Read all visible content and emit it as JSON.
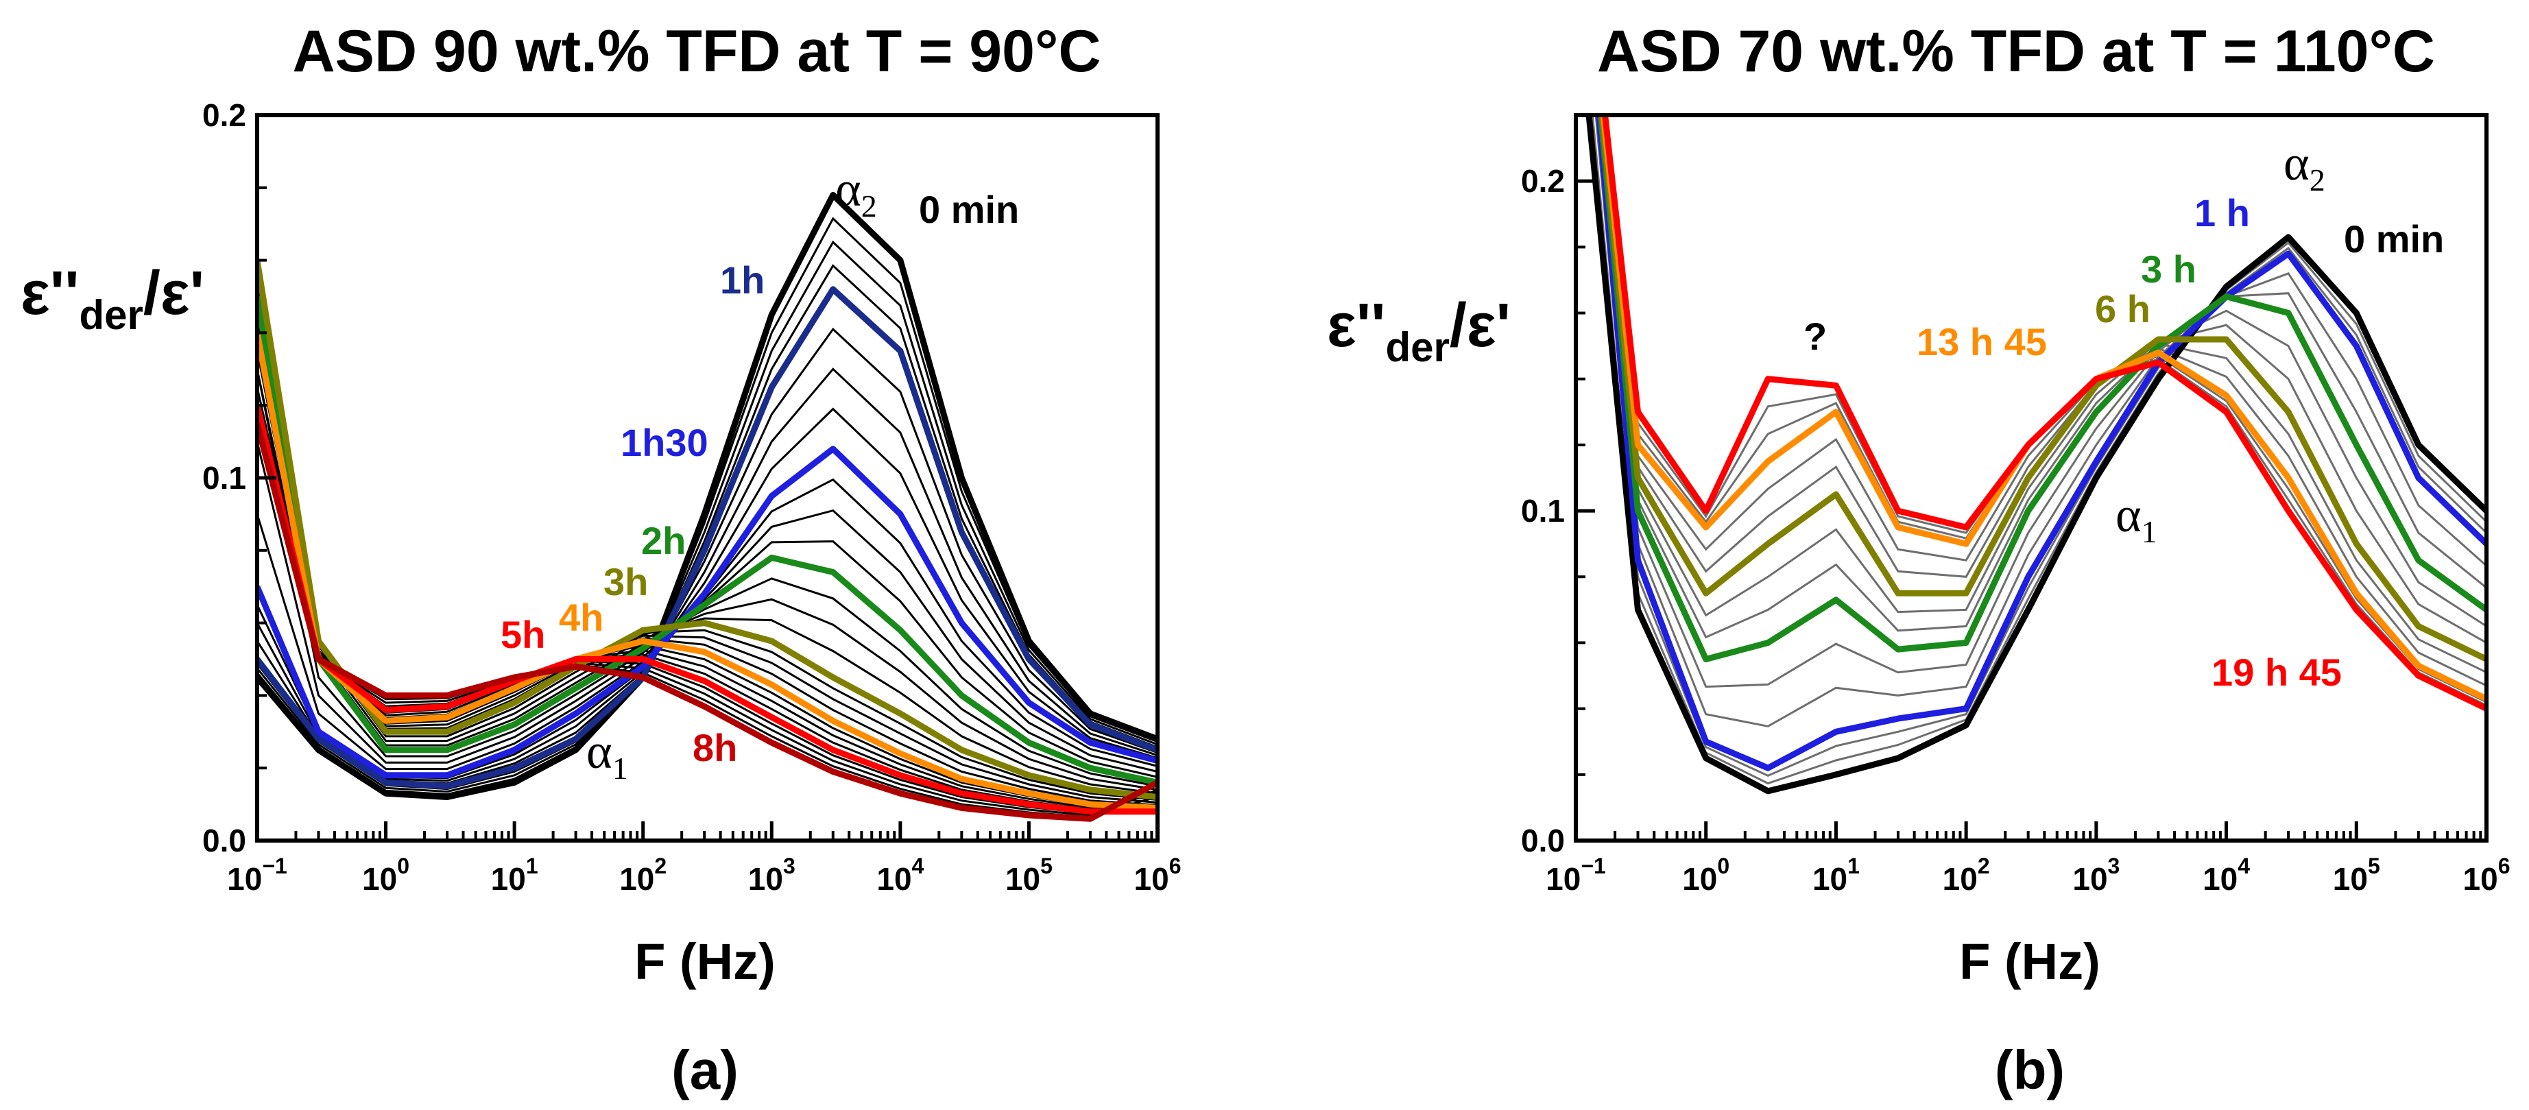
{
  "chart_data": [
    {
      "type": "line",
      "panel_label": "(a)",
      "title": "ASD 90 wt.% TFD at T = 90°C",
      "xlabel": "F (Hz)",
      "ylabel": "ε''der/ε'",
      "ylabel_main": "ε''",
      "ylabel_sub": "der",
      "ylabel_tail": "/ε'",
      "x_scale": "log",
      "xlim": [
        0.1,
        1000000
      ],
      "ylim": [
        0,
        0.2
      ],
      "x_tick_bases": [
        "10",
        "10",
        "10",
        "10",
        "10",
        "10",
        "10",
        "10"
      ],
      "x_tick_exps": [
        "−1",
        "0",
        "1",
        "2",
        "3",
        "4",
        "5",
        "6"
      ],
      "x_tick_values": [
        0.1,
        1,
        10,
        100,
        1000,
        10000,
        100000,
        1000000
      ],
      "y_ticks": [
        0,
        0.1,
        0.2
      ],
      "y_tick_labels": [
        "0.0",
        "0.1",
        "0.2"
      ],
      "colors": {
        "black": "#000000",
        "navy": "#1a2c8c",
        "blue": "#1f1fe0",
        "green": "#1a8a1a",
        "olive": "#808000",
        "orange": "#ff8c00",
        "red": "#ff0000",
        "darkred": "#b00000"
      },
      "series": [
        {
          "label": "0 min",
          "color": "#000000",
          "x": [
            0.1,
            0.3,
            1,
            3,
            10,
            30,
            100,
            300,
            1000,
            3000,
            10000,
            30000,
            100000,
            300000,
            1000000
          ],
          "y": [
            0.045,
            0.025,
            0.013,
            0.012,
            0.016,
            0.025,
            0.045,
            0.09,
            0.145,
            0.178,
            0.16,
            0.1,
            0.055,
            0.035,
            0.028
          ]
        },
        {
          "label": "1h",
          "color": "#1a2c8c",
          "x": [
            0.1,
            0.3,
            1,
            3,
            10,
            30,
            100,
            300,
            1000,
            3000,
            10000,
            30000,
            100000,
            300000,
            1000000
          ],
          "y": [
            0.05,
            0.028,
            0.016,
            0.015,
            0.02,
            0.028,
            0.045,
            0.08,
            0.125,
            0.152,
            0.135,
            0.085,
            0.05,
            0.032,
            0.025
          ]
        },
        {
          "label": "1h30",
          "color": "#1f1fe0",
          "x": [
            0.1,
            0.3,
            1,
            3,
            10,
            30,
            100,
            300,
            1000,
            3000,
            10000,
            30000,
            100000,
            300000,
            1000000
          ],
          "y": [
            0.07,
            0.03,
            0.018,
            0.018,
            0.025,
            0.035,
            0.048,
            0.068,
            0.095,
            0.108,
            0.09,
            0.06,
            0.038,
            0.027,
            0.022
          ]
        },
        {
          "label": "2h",
          "color": "#1a8a1a",
          "x": [
            0.1,
            0.3,
            1,
            3,
            10,
            30,
            100,
            300,
            1000,
            3000,
            10000,
            30000,
            100000,
            300000,
            1000000
          ],
          "y": [
            0.15,
            0.05,
            0.025,
            0.025,
            0.032,
            0.042,
            0.053,
            0.065,
            0.078,
            0.074,
            0.058,
            0.04,
            0.027,
            0.02,
            0.016
          ]
        },
        {
          "label": "3h",
          "color": "#808000",
          "x": [
            0.1,
            0.3,
            1,
            3,
            10,
            30,
            100,
            300,
            1000,
            3000,
            10000,
            30000,
            100000,
            300000,
            1000000
          ],
          "y": [
            0.16,
            0.055,
            0.03,
            0.03,
            0.038,
            0.048,
            0.058,
            0.06,
            0.055,
            0.045,
            0.035,
            0.025,
            0.018,
            0.014,
            0.012
          ]
        },
        {
          "label": "4h",
          "color": "#ff8c00",
          "x": [
            0.1,
            0.3,
            1,
            3,
            10,
            30,
            100,
            300,
            1000,
            3000,
            10000,
            30000,
            100000,
            300000,
            1000000
          ],
          "y": [
            0.14,
            0.05,
            0.033,
            0.034,
            0.042,
            0.05,
            0.055,
            0.052,
            0.043,
            0.033,
            0.024,
            0.017,
            0.013,
            0.01,
            0.009
          ]
        },
        {
          "label": "5h",
          "color": "#ff0000",
          "x": [
            0.1,
            0.3,
            1,
            3,
            10,
            30,
            100,
            300,
            1000,
            3000,
            10000,
            30000,
            100000,
            300000,
            1000000
          ],
          "y": [
            0.12,
            0.05,
            0.036,
            0.037,
            0.044,
            0.05,
            0.05,
            0.044,
            0.034,
            0.025,
            0.018,
            0.013,
            0.01,
            0.008,
            0.008
          ]
        },
        {
          "label": "8h",
          "color": "#b00000",
          "x": [
            0.1,
            0.3,
            1,
            3,
            10,
            30,
            100,
            300,
            1000,
            3000,
            10000,
            30000,
            100000,
            300000,
            1000000
          ],
          "y": [
            0.115,
            0.05,
            0.04,
            0.04,
            0.045,
            0.048,
            0.045,
            0.037,
            0.027,
            0.019,
            0.013,
            0.009,
            0.007,
            0.006,
            0.016
          ]
        }
      ],
      "annotations": [
        {
          "text": "0 min",
          "color": "#000000"
        },
        {
          "text": "1h",
          "color": "#1a2c8c"
        },
        {
          "text": "1h30",
          "color": "#1f1fe0"
        },
        {
          "text": "2h",
          "color": "#1a8a1a"
        },
        {
          "text": "3h",
          "color": "#808000"
        },
        {
          "text": "4h",
          "color": "#ff8c00"
        },
        {
          "text": "5h",
          "color": "#ff0000"
        },
        {
          "text": "8h",
          "color": "#cc0000"
        }
      ],
      "peak_labels": [
        {
          "symbol": "α",
          "sub": "2"
        },
        {
          "symbol": "α",
          "sub": "1"
        }
      ]
    },
    {
      "type": "line",
      "panel_label": "(b)",
      "title": "ASD 70 wt.% TFD at T = 110°C",
      "xlabel": "F (Hz)",
      "ylabel": "ε''der/ε'",
      "ylabel_main": "ε''",
      "ylabel_sub": "der",
      "ylabel_tail": "/ε'",
      "x_scale": "log",
      "xlim": [
        0.1,
        1000000
      ],
      "ylim": [
        0,
        0.22
      ],
      "x_tick_bases": [
        "10",
        "10",
        "10",
        "10",
        "10",
        "10",
        "10",
        "10"
      ],
      "x_tick_exps": [
        "−1",
        "0",
        "1",
        "2",
        "3",
        "4",
        "5",
        "6"
      ],
      "x_tick_values": [
        0.1,
        1,
        10,
        100,
        1000,
        10000,
        100000,
        1000000
      ],
      "y_ticks": [
        0,
        0.1,
        0.2
      ],
      "y_tick_labels": [
        "0.0",
        "0.1",
        "0.2"
      ],
      "series": [
        {
          "label": "0 min",
          "color": "#000000",
          "x": [
            0.1,
            0.3,
            1,
            3,
            10,
            30,
            100,
            300,
            1000,
            3000,
            10000,
            30000,
            100000,
            300000,
            1000000
          ],
          "y": [
            0.26,
            0.07,
            0.025,
            0.015,
            0.02,
            0.025,
            0.035,
            0.07,
            0.11,
            0.14,
            0.168,
            0.183,
            0.16,
            0.12,
            0.1
          ]
        },
        {
          "label": "1 h",
          "color": "#1f1fe0",
          "x": [
            0.1,
            0.3,
            1,
            3,
            10,
            30,
            100,
            300,
            1000,
            3000,
            10000,
            30000,
            100000,
            300000,
            1000000
          ],
          "y": [
            0.3,
            0.085,
            0.03,
            0.022,
            0.033,
            0.037,
            0.04,
            0.08,
            0.115,
            0.145,
            0.165,
            0.178,
            0.15,
            0.11,
            0.09
          ]
        },
        {
          "label": "3 h",
          "color": "#1a8a1a",
          "x": [
            0.1,
            0.3,
            1,
            3,
            10,
            30,
            100,
            300,
            1000,
            3000,
            10000,
            30000,
            100000,
            300000,
            1000000
          ],
          "y": [
            0.3,
            0.1,
            0.055,
            0.06,
            0.073,
            0.058,
            0.06,
            0.1,
            0.13,
            0.15,
            0.165,
            0.16,
            0.12,
            0.085,
            0.07
          ]
        },
        {
          "label": "6 h",
          "color": "#808000",
          "x": [
            0.1,
            0.3,
            1,
            3,
            10,
            30,
            100,
            300,
            1000,
            3000,
            10000,
            30000,
            100000,
            300000,
            1000000
          ],
          "y": [
            0.3,
            0.11,
            0.075,
            0.09,
            0.105,
            0.075,
            0.075,
            0.11,
            0.138,
            0.152,
            0.152,
            0.13,
            0.09,
            0.065,
            0.055
          ]
        },
        {
          "label": "13 h 45",
          "color": "#ff8c00",
          "x": [
            0.1,
            0.3,
            1,
            3,
            10,
            30,
            100,
            300,
            1000,
            3000,
            10000,
            30000,
            100000,
            300000,
            1000000
          ],
          "y": [
            0.3,
            0.12,
            0.095,
            0.115,
            0.13,
            0.095,
            0.09,
            0.12,
            0.14,
            0.148,
            0.135,
            0.11,
            0.075,
            0.053,
            0.043
          ]
        },
        {
          "label": "19 h 45",
          "color": "#ff0000",
          "x": [
            0.1,
            0.3,
            1,
            3,
            10,
            30,
            100,
            300,
            1000,
            3000,
            10000,
            30000,
            100000,
            300000,
            1000000
          ],
          "y": [
            0.3,
            0.13,
            0.1,
            0.14,
            0.138,
            0.1,
            0.095,
            0.12,
            0.14,
            0.145,
            0.13,
            0.1,
            0.07,
            0.05,
            0.04
          ]
        }
      ],
      "annotations": [
        {
          "text": "0 min",
          "color": "#000000"
        },
        {
          "text": "1 h",
          "color": "#1f1fe0"
        },
        {
          "text": "3 h",
          "color": "#1a8a1a"
        },
        {
          "text": "6 h",
          "color": "#808000"
        },
        {
          "text": "13 h 45",
          "color": "#ff8c00"
        },
        {
          "text": "19 h 45",
          "color": "#ff0000"
        },
        {
          "text": "?",
          "color": "#000000"
        }
      ],
      "peak_labels": [
        {
          "symbol": "α",
          "sub": "2"
        },
        {
          "symbol": "α",
          "sub": "1"
        }
      ]
    }
  ]
}
